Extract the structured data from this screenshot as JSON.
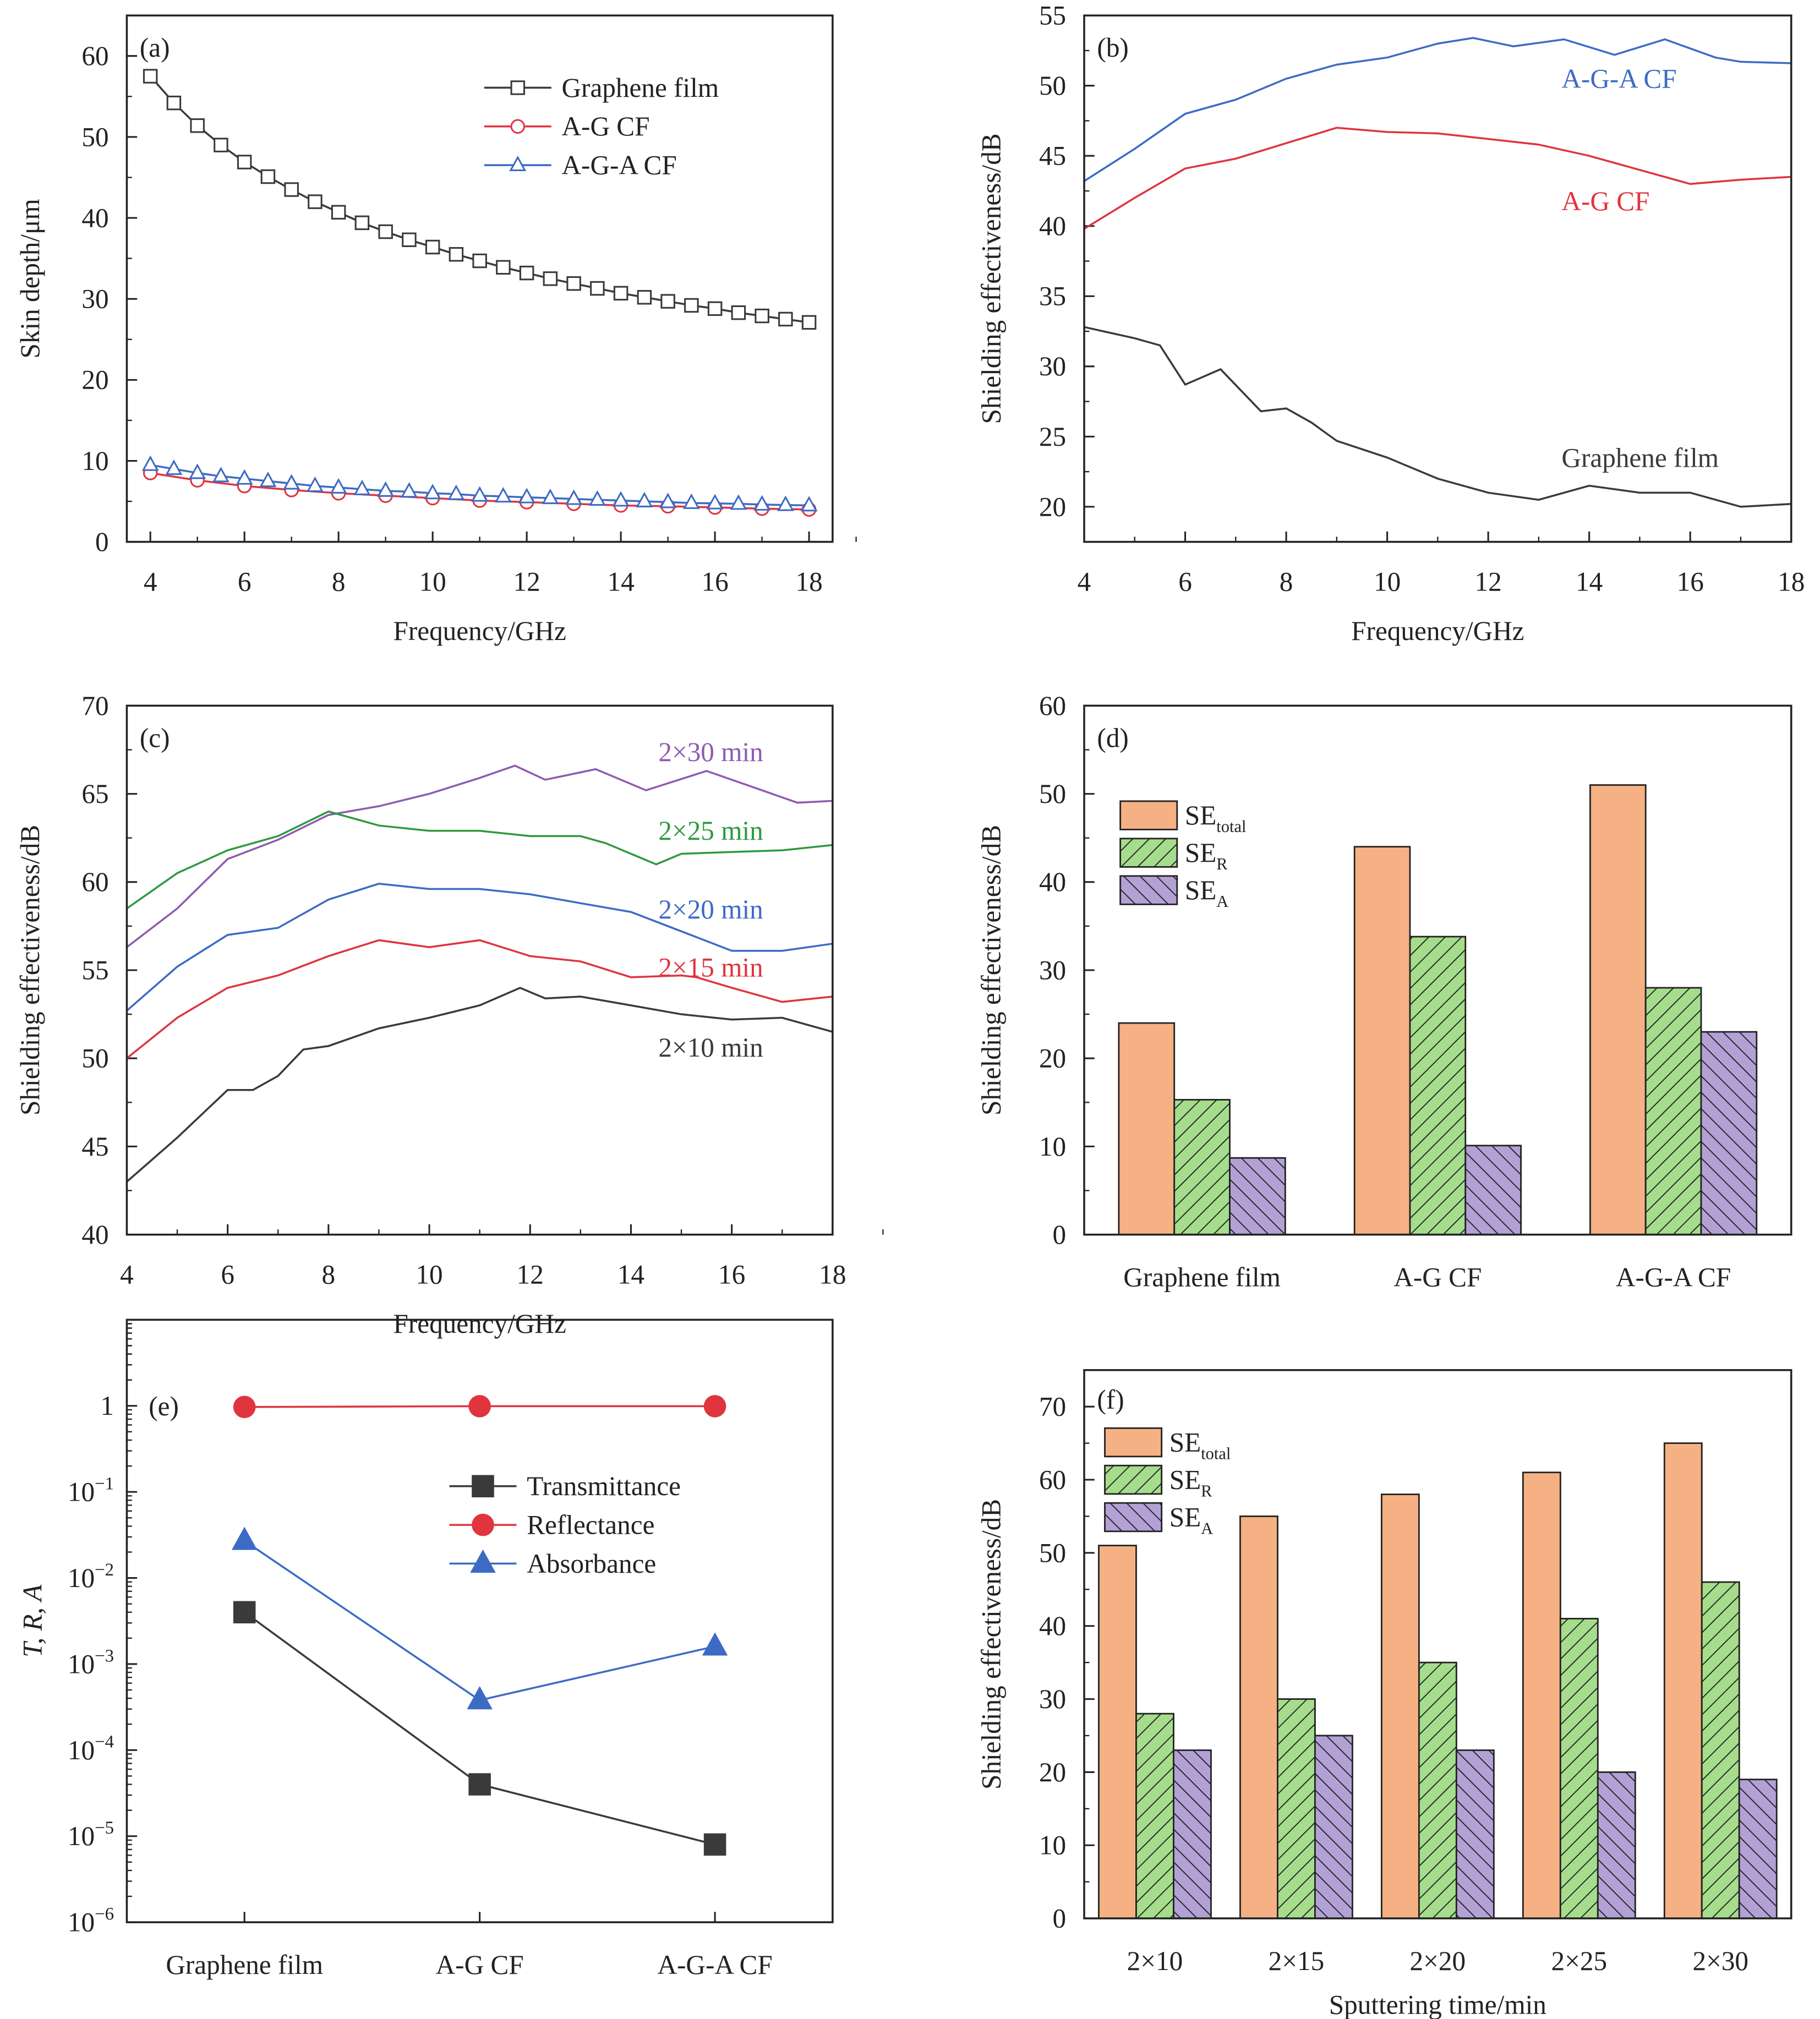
{
  "colors": {
    "black": "#3a3a3a",
    "red": "#e0343f",
    "blue": "#3d6bc4",
    "purple": "#8e5bb0",
    "green": "#2e9a3f",
    "bar_total": "#f5b184",
    "bar_R": "#a6dd8c",
    "bar_A": "#b3a1d6"
  },
  "chart_data": [
    {
      "panel": "(a)",
      "type": "line",
      "xlabel": "Frequency/GHz",
      "ylabel": "Skin depth/μm",
      "xlim": [
        3.5,
        18.5
      ],
      "ylim": [
        0,
        65
      ],
      "xticks": [
        4,
        6,
        8,
        10,
        12,
        14,
        16,
        18
      ],
      "yticks": [
        0,
        10,
        20,
        30,
        40,
        50,
        60
      ],
      "grid": false,
      "legend": "top-right",
      "series": [
        {
          "name": "Graphene film",
          "color": "#3a3a3a",
          "marker": "square",
          "x": [
            4,
            4.5,
            5,
            5.5,
            6,
            6.5,
            7,
            7.5,
            8,
            8.5,
            9,
            9.5,
            10,
            10.5,
            11,
            11.5,
            12,
            12.5,
            13,
            13.5,
            14,
            14.5,
            15,
            15.5,
            16,
            16.5,
            17,
            17.5,
            18
          ],
          "y": [
            57.5,
            54.2,
            51.4,
            49.0,
            46.9,
            45.1,
            43.5,
            42.0,
            40.7,
            39.4,
            38.3,
            37.3,
            36.4,
            35.5,
            34.7,
            33.9,
            33.2,
            32.5,
            31.9,
            31.3,
            30.7,
            30.2,
            29.7,
            29.2,
            28.8,
            28.3,
            27.9,
            27.5,
            27.1
          ]
        },
        {
          "name": "A-G CF",
          "color": "#e0343f",
          "marker": "circle",
          "x": [
            4,
            5,
            6,
            7,
            8,
            9,
            10,
            11,
            12,
            13,
            14,
            15,
            16,
            17,
            18
          ],
          "y": [
            8.5,
            7.6,
            6.9,
            6.4,
            6.0,
            5.7,
            5.4,
            5.1,
            4.9,
            4.7,
            4.5,
            4.4,
            4.25,
            4.1,
            4.0
          ]
        },
        {
          "name": "A-G-A CF",
          "color": "#3d6bc4",
          "marker": "triangle",
          "x": [
            4,
            4.5,
            5,
            5.5,
            6,
            6.5,
            7,
            7.5,
            8,
            8.5,
            9,
            9.5,
            10,
            10.5,
            11,
            11.5,
            12,
            12.5,
            13,
            13.5,
            14,
            14.5,
            15,
            15.5,
            16,
            16.5,
            17,
            17.5,
            18
          ],
          "y": [
            9.5,
            9.0,
            8.5,
            8.1,
            7.8,
            7.5,
            7.2,
            6.9,
            6.7,
            6.5,
            6.3,
            6.2,
            6.0,
            5.9,
            5.7,
            5.6,
            5.5,
            5.4,
            5.3,
            5.2,
            5.1,
            5.0,
            4.9,
            4.8,
            4.75,
            4.7,
            4.6,
            4.55,
            4.5
          ]
        }
      ]
    },
    {
      "panel": "(b)",
      "type": "line",
      "xlabel": "Frequency/GHz",
      "ylabel": "Shielding effectiveness/dB",
      "xlim": [
        4,
        18
      ],
      "ylim": [
        17.5,
        55
      ],
      "xticks": [
        4,
        6,
        8,
        10,
        12,
        14,
        16,
        18
      ],
      "yticks": [
        20,
        25,
        30,
        35,
        40,
        45,
        50,
        55
      ],
      "grid": false,
      "legend": "inline labels",
      "series": [
        {
          "name": "A-G-A CF",
          "color": "#3d6bc4",
          "x": [
            4,
            5,
            6,
            7,
            8,
            9,
            10,
            11,
            11.7,
            12.5,
            13.5,
            14.5,
            15.5,
            16.5,
            17,
            18
          ],
          "y": [
            43.2,
            45.5,
            48,
            49,
            50.5,
            51.5,
            52,
            53,
            53.4,
            52.8,
            53.3,
            52.2,
            53.3,
            52,
            51.7,
            51.6
          ]
        },
        {
          "name": "A-G CF",
          "color": "#e0343f",
          "x": [
            4,
            5,
            6,
            7,
            8,
            9,
            10,
            11,
            12,
            13,
            14,
            15,
            16,
            17,
            18
          ],
          "y": [
            39.8,
            42,
            44.1,
            44.8,
            45.9,
            47,
            46.7,
            46.6,
            46.2,
            45.8,
            45,
            44,
            43,
            43.3,
            43.5
          ]
        },
        {
          "name": "Graphene film",
          "color": "#3a3a3a",
          "x": [
            4,
            5,
            5.5,
            6,
            6.7,
            7.5,
            8,
            8.5,
            9,
            10,
            11,
            12,
            13,
            14,
            15,
            16,
            17,
            18
          ],
          "y": [
            32.8,
            32,
            31.5,
            28.7,
            29.8,
            26.8,
            27,
            26,
            24.7,
            23.5,
            22,
            21,
            20.5,
            21.5,
            21,
            21,
            20,
            20.2
          ]
        }
      ]
    },
    {
      "panel": "(c)",
      "type": "line",
      "xlabel": "Frequency/GHz",
      "ylabel": "Shielding effectiveness/dB",
      "xlim": [
        4,
        18
      ],
      "ylim": [
        40,
        70
      ],
      "xticks": [
        4,
        6,
        8,
        10,
        12,
        14,
        16,
        18
      ],
      "yticks": [
        40,
        45,
        50,
        55,
        60,
        65,
        70
      ],
      "grid": false,
      "legend": "inline labels",
      "series": [
        {
          "name": "2×30 min",
          "color": "#8e5bb0",
          "x": [
            4,
            5,
            6,
            7,
            8,
            9,
            10,
            11,
            11.7,
            12.3,
            13.3,
            14.3,
            15.5,
            16.5,
            17.3,
            18
          ],
          "y": [
            56.3,
            58.5,
            61.3,
            62.4,
            63.8,
            64.3,
            65,
            65.9,
            66.6,
            65.8,
            66.4,
            65.2,
            66.3,
            65.3,
            64.5,
            64.6
          ]
        },
        {
          "name": "2×25 min",
          "color": "#2e9a3f",
          "x": [
            4,
            5,
            6,
            7,
            8,
            9,
            10,
            11,
            12,
            13,
            13.5,
            14.5,
            15,
            16,
            17,
            18
          ],
          "y": [
            58.5,
            60.5,
            61.8,
            62.6,
            64,
            63.2,
            62.9,
            62.9,
            62.6,
            62.6,
            62.2,
            61,
            61.6,
            61.7,
            61.8,
            62.1
          ]
        },
        {
          "name": "2×20 min",
          "color": "#3d6bc4",
          "x": [
            4,
            5,
            6,
            7,
            8,
            9,
            10,
            11,
            12,
            13,
            14,
            15,
            16,
            17,
            18
          ],
          "y": [
            52.7,
            55.2,
            57,
            57.4,
            59,
            59.9,
            59.6,
            59.6,
            59.3,
            58.8,
            58.3,
            57.2,
            56.1,
            56.1,
            56.5
          ]
        },
        {
          "name": "2×15 min",
          "color": "#e0343f",
          "x": [
            4,
            5,
            6,
            7,
            8,
            9,
            10,
            11,
            12,
            13,
            14,
            15,
            15.3,
            16,
            17,
            18
          ],
          "y": [
            50,
            52.3,
            54,
            54.7,
            55.8,
            56.7,
            56.3,
            56.7,
            55.8,
            55.5,
            54.6,
            54.7,
            54.6,
            54,
            53.2,
            53.5
          ]
        },
        {
          "name": "2×10 min",
          "color": "#3a3a3a",
          "x": [
            4,
            5,
            6,
            6.5,
            7,
            7.5,
            8,
            9,
            10,
            11,
            11.8,
            12.3,
            13,
            14,
            15,
            16,
            17,
            18
          ],
          "y": [
            43,
            45.5,
            48.2,
            48.2,
            49,
            50.5,
            50.7,
            51.7,
            52.3,
            53,
            54,
            53.4,
            53.5,
            53,
            52.5,
            52.2,
            52.3,
            51.5
          ]
        }
      ]
    },
    {
      "panel": "(d)",
      "type": "bar",
      "xlabel": "",
      "ylabel": "Shielding effectiveness/dB",
      "ylim": [
        0,
        60
      ],
      "yticks": [
        0,
        10,
        20,
        30,
        40,
        50,
        60
      ],
      "categories": [
        "Graphene film",
        "A-G CF",
        "A-G-A CF"
      ],
      "grid": false,
      "legend": "top-left",
      "series": [
        {
          "name": "SE",
          "name_sub": "total",
          "color": "#f5b184",
          "hatch": "none",
          "values": [
            24,
            44,
            51
          ]
        },
        {
          "name": "SE",
          "name_sub": "R",
          "color": "#a6dd8c",
          "hatch": "forward",
          "values": [
            15.3,
            33.8,
            28
          ]
        },
        {
          "name": "SE",
          "name_sub": "A",
          "color": "#b3a1d6",
          "hatch": "backward",
          "values": [
            8.7,
            10.1,
            23
          ]
        }
      ]
    },
    {
      "panel": "(e)",
      "type": "line",
      "xlabel": "",
      "ylabel": "T, R, A",
      "yscale": "log",
      "ylim": [
        1e-06,
        10
      ],
      "yticks": [
        1e-06,
        1e-05,
        0.0001,
        0.001,
        0.01,
        0.1,
        1
      ],
      "ytick_labels": [
        {
          "base": "10",
          "exp": "−6"
        },
        {
          "base": "10",
          "exp": "−5"
        },
        {
          "base": "10",
          "exp": "−4"
        },
        {
          "base": "10",
          "exp": "−3"
        },
        {
          "base": "10",
          "exp": "−2"
        },
        {
          "base": "10",
          "exp": "−1"
        },
        {
          "base": "1",
          "exp": ""
        }
      ],
      "categories": [
        "Graphene film",
        "A-G CF",
        "A-G-A CF"
      ],
      "grid": false,
      "legend": "upper-right",
      "series": [
        {
          "name": "Transmittance",
          "color": "#3a3a3a",
          "marker": "square",
          "values": [
            0.004,
            4e-05,
            8e-06
          ]
        },
        {
          "name": "Reflectance",
          "color": "#e0343f",
          "marker": "circle",
          "values": [
            0.97,
            0.99,
            0.99
          ]
        },
        {
          "name": "Absorbance",
          "color": "#3d6bc4",
          "marker": "triangle",
          "values": [
            0.027,
            0.00038,
            0.0016
          ]
        }
      ]
    },
    {
      "panel": "(f)",
      "type": "bar",
      "xlabel": "Sputtering time/min",
      "ylabel": "Shielding effectiveness/dB",
      "ylim": [
        0,
        75
      ],
      "yticks": [
        0,
        10,
        20,
        30,
        40,
        50,
        60,
        70
      ],
      "categories": [
        "2×10",
        "2×15",
        "2×20",
        "2×25",
        "2×30"
      ],
      "grid": false,
      "legend": "top-left",
      "series": [
        {
          "name": "SE",
          "name_sub": "total",
          "color": "#f5b184",
          "hatch": "none",
          "values": [
            51,
            55,
            58,
            61,
            65
          ]
        },
        {
          "name": "SE",
          "name_sub": "R",
          "color": "#a6dd8c",
          "hatch": "forward",
          "values": [
            28,
            30,
            35,
            41,
            46
          ]
        },
        {
          "name": "SE",
          "name_sub": "A",
          "color": "#b3a1d6",
          "hatch": "backward",
          "values": [
            23,
            25,
            23,
            20,
            19
          ]
        }
      ]
    }
  ]
}
